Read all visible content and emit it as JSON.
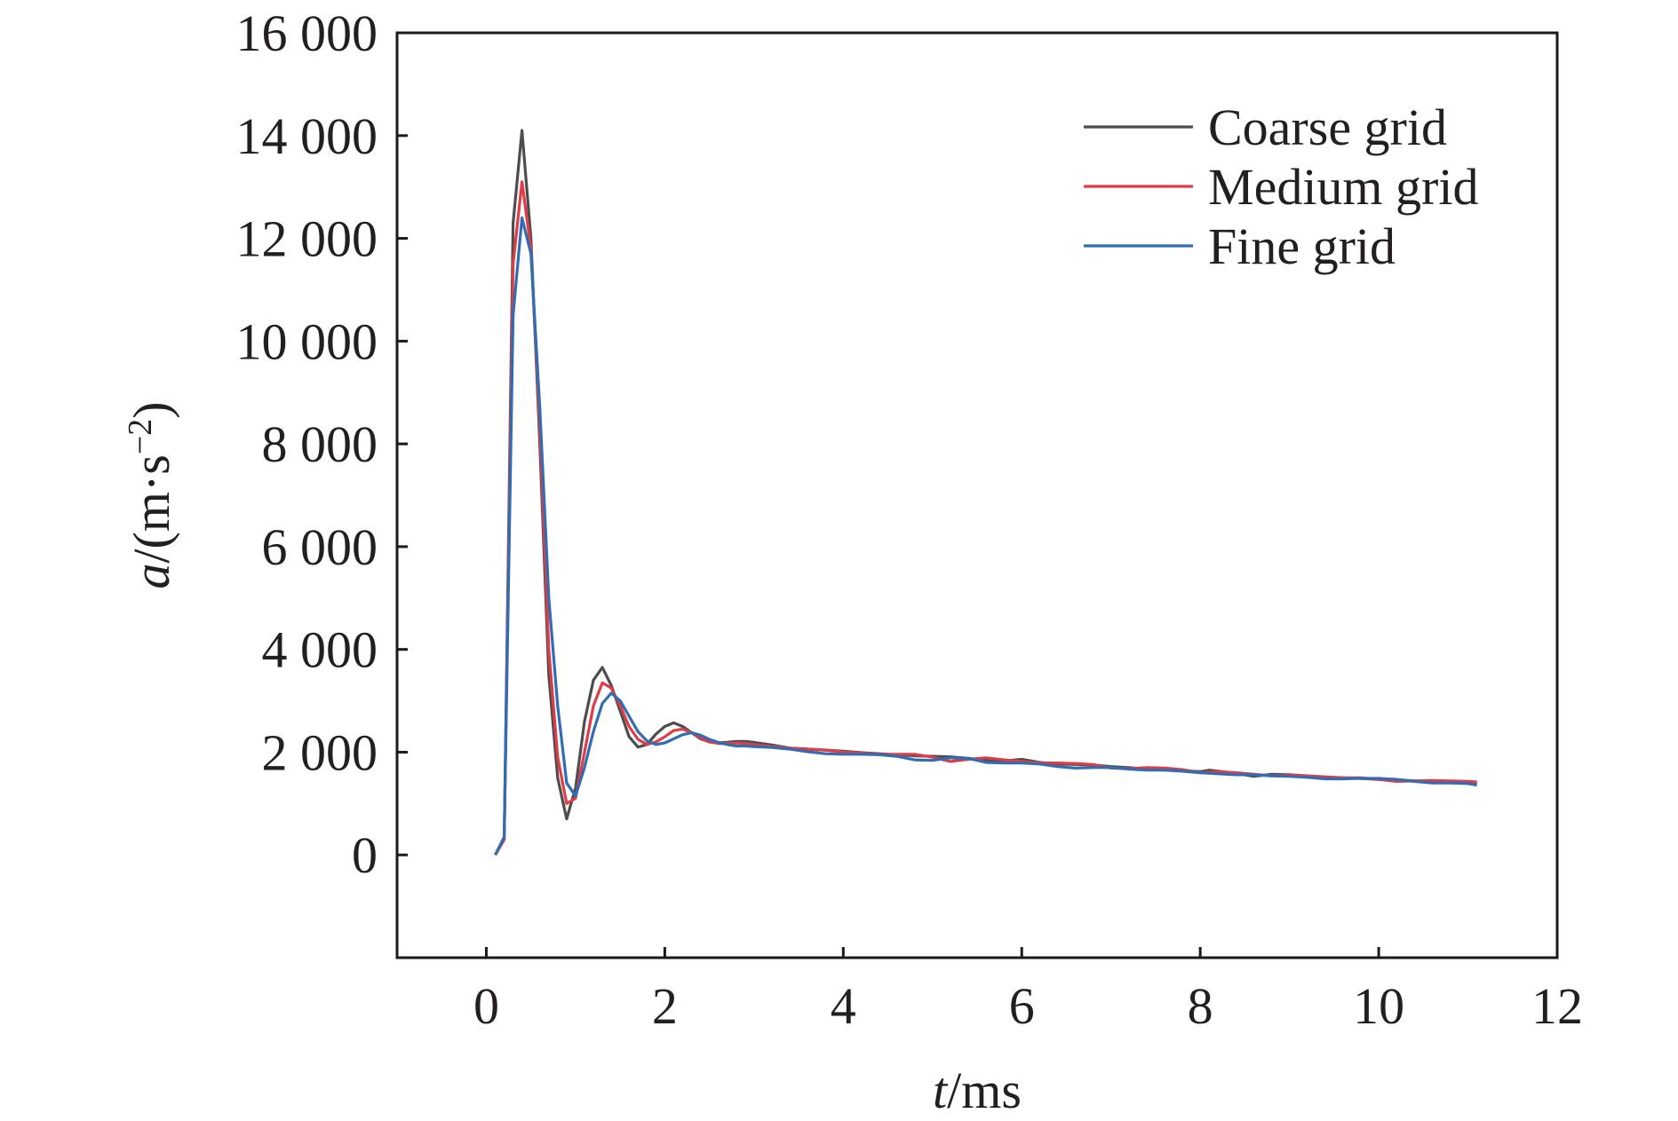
{
  "chart_data": {
    "type": "line",
    "title": "",
    "xlabel": {
      "var": "t",
      "unit": "/ms"
    },
    "ylabel": {
      "var": "a",
      "unit": "/(m·s",
      "sup": "−2",
      "close": ")"
    },
    "xlim": [
      -1,
      12
    ],
    "ylim": [
      -2000,
      16000
    ],
    "xticks": [
      0,
      2,
      4,
      6,
      8,
      10,
      12
    ],
    "xtick_labels": [
      "0",
      "2",
      "4",
      "6",
      "8",
      "10",
      "12"
    ],
    "yticks": [
      0,
      2000,
      4000,
      6000,
      8000,
      10000,
      12000,
      14000,
      16000
    ],
    "ytick_labels": [
      "0",
      "2 000",
      "4 000",
      "6 000",
      "8 000",
      "10 000",
      "12 000",
      "14 000",
      "16 000"
    ],
    "grid": false,
    "legend_position": "top-right",
    "series": [
      {
        "name": "Coarse grid",
        "color": "#4d4d4d",
        "points": [
          [
            0.1,
            0
          ],
          [
            0.2,
            300
          ],
          [
            0.3,
            12300
          ],
          [
            0.4,
            14100
          ],
          [
            0.5,
            12000
          ],
          [
            0.6,
            8000
          ],
          [
            0.7,
            3500
          ],
          [
            0.8,
            1500
          ],
          [
            0.9,
            700
          ],
          [
            1.0,
            1300
          ],
          [
            1.1,
            2600
          ],
          [
            1.2,
            3400
          ],
          [
            1.3,
            3650
          ],
          [
            1.4,
            3300
          ],
          [
            1.5,
            2800
          ],
          [
            1.6,
            2300
          ],
          [
            1.7,
            2100
          ],
          [
            1.8,
            2150
          ],
          [
            1.9,
            2350
          ],
          [
            2.0,
            2500
          ],
          [
            2.1,
            2570
          ],
          [
            2.2,
            2500
          ],
          [
            2.3,
            2380
          ],
          [
            2.4,
            2260
          ],
          [
            2.5,
            2200
          ],
          [
            2.6,
            2180
          ],
          [
            2.7,
            2190
          ],
          [
            2.8,
            2210
          ],
          [
            2.9,
            2210
          ],
          [
            3.0,
            2190
          ],
          [
            3.2,
            2140
          ],
          [
            3.4,
            2080
          ],
          [
            3.6,
            2060
          ],
          [
            3.8,
            2040
          ],
          [
            4.0,
            2020
          ],
          [
            4.2,
            1990
          ],
          [
            4.4,
            1970
          ],
          [
            4.6,
            1950
          ],
          [
            4.8,
            1930
          ],
          [
            5.0,
            1920
          ],
          [
            5.2,
            1910
          ],
          [
            5.4,
            1880
          ],
          [
            5.6,
            1840
          ],
          [
            5.8,
            1830
          ],
          [
            6.0,
            1860
          ],
          [
            6.2,
            1800
          ],
          [
            6.4,
            1770
          ],
          [
            6.6,
            1760
          ],
          [
            6.8,
            1750
          ],
          [
            7.0,
            1720
          ],
          [
            7.2,
            1700
          ],
          [
            7.4,
            1670
          ],
          [
            7.6,
            1650
          ],
          [
            7.8,
            1640
          ],
          [
            8.0,
            1620
          ],
          [
            8.1,
            1650
          ],
          [
            8.2,
            1630
          ],
          [
            8.4,
            1590
          ],
          [
            8.6,
            1530
          ],
          [
            8.8,
            1570
          ],
          [
            9.0,
            1560
          ],
          [
            9.2,
            1520
          ],
          [
            9.4,
            1500
          ],
          [
            9.6,
            1500
          ],
          [
            9.8,
            1490
          ],
          [
            10.0,
            1470
          ],
          [
            10.2,
            1460
          ],
          [
            10.4,
            1440
          ],
          [
            10.6,
            1430
          ],
          [
            10.8,
            1420
          ],
          [
            11.0,
            1400
          ],
          [
            11.1,
            1390
          ]
        ]
      },
      {
        "name": "Medium grid",
        "color": "#e03c46",
        "points": [
          [
            0.1,
            0
          ],
          [
            0.2,
            300
          ],
          [
            0.3,
            11500
          ],
          [
            0.4,
            13100
          ],
          [
            0.5,
            11800
          ],
          [
            0.6,
            8300
          ],
          [
            0.7,
            4000
          ],
          [
            0.8,
            1900
          ],
          [
            0.9,
            1000
          ],
          [
            1.0,
            1100
          ],
          [
            1.1,
            2000
          ],
          [
            1.2,
            2900
          ],
          [
            1.3,
            3350
          ],
          [
            1.4,
            3250
          ],
          [
            1.5,
            2900
          ],
          [
            1.6,
            2500
          ],
          [
            1.7,
            2250
          ],
          [
            1.8,
            2150
          ],
          [
            1.9,
            2200
          ],
          [
            2.0,
            2300
          ],
          [
            2.1,
            2420
          ],
          [
            2.2,
            2450
          ],
          [
            2.3,
            2380
          ],
          [
            2.4,
            2280
          ],
          [
            2.5,
            2200
          ],
          [
            2.6,
            2170
          ],
          [
            2.7,
            2170
          ],
          [
            2.8,
            2180
          ],
          [
            2.9,
            2170
          ],
          [
            3.0,
            2150
          ],
          [
            3.2,
            2110
          ],
          [
            3.4,
            2080
          ],
          [
            3.6,
            2060
          ],
          [
            3.8,
            2040
          ],
          [
            4.0,
            2000
          ],
          [
            4.2,
            1980
          ],
          [
            4.4,
            1960
          ],
          [
            4.6,
            1960
          ],
          [
            4.8,
            1960
          ],
          [
            5.0,
            1900
          ],
          [
            5.2,
            1820
          ],
          [
            5.4,
            1860
          ],
          [
            5.6,
            1890
          ],
          [
            5.8,
            1850
          ],
          [
            6.0,
            1820
          ],
          [
            6.2,
            1790
          ],
          [
            6.4,
            1790
          ],
          [
            6.6,
            1780
          ],
          [
            6.8,
            1760
          ],
          [
            7.0,
            1690
          ],
          [
            7.2,
            1680
          ],
          [
            7.4,
            1700
          ],
          [
            7.6,
            1690
          ],
          [
            7.8,
            1660
          ],
          [
            8.0,
            1600
          ],
          [
            8.2,
            1620
          ],
          [
            8.4,
            1600
          ],
          [
            8.6,
            1570
          ],
          [
            8.8,
            1540
          ],
          [
            9.0,
            1560
          ],
          [
            9.2,
            1540
          ],
          [
            9.4,
            1520
          ],
          [
            9.6,
            1500
          ],
          [
            9.8,
            1500
          ],
          [
            10.0,
            1470
          ],
          [
            10.2,
            1430
          ],
          [
            10.4,
            1440
          ],
          [
            10.6,
            1450
          ],
          [
            10.8,
            1440
          ],
          [
            11.0,
            1430
          ],
          [
            11.1,
            1420
          ]
        ]
      },
      {
        "name": "Fine grid",
        "color": "#2f6db5",
        "points": [
          [
            0.1,
            0
          ],
          [
            0.2,
            350
          ],
          [
            0.3,
            10500
          ],
          [
            0.4,
            12400
          ],
          [
            0.5,
            11700
          ],
          [
            0.6,
            8700
          ],
          [
            0.7,
            5000
          ],
          [
            0.8,
            2900
          ],
          [
            0.9,
            1400
          ],
          [
            1.0,
            1150
          ],
          [
            1.1,
            1700
          ],
          [
            1.2,
            2400
          ],
          [
            1.3,
            2950
          ],
          [
            1.4,
            3150
          ],
          [
            1.5,
            3000
          ],
          [
            1.6,
            2700
          ],
          [
            1.7,
            2400
          ],
          [
            1.8,
            2220
          ],
          [
            1.9,
            2150
          ],
          [
            2.0,
            2180
          ],
          [
            2.1,
            2260
          ],
          [
            2.2,
            2340
          ],
          [
            2.3,
            2380
          ],
          [
            2.4,
            2330
          ],
          [
            2.5,
            2250
          ],
          [
            2.6,
            2190
          ],
          [
            2.7,
            2150
          ],
          [
            2.8,
            2120
          ],
          [
            2.9,
            2120
          ],
          [
            3.0,
            2110
          ],
          [
            3.2,
            2090
          ],
          [
            3.4,
            2060
          ],
          [
            3.6,
            2010
          ],
          [
            3.8,
            1970
          ],
          [
            4.0,
            1960
          ],
          [
            4.2,
            1960
          ],
          [
            4.4,
            1950
          ],
          [
            4.6,
            1920
          ],
          [
            4.8,
            1850
          ],
          [
            5.0,
            1840
          ],
          [
            5.2,
            1890
          ],
          [
            5.4,
            1880
          ],
          [
            5.6,
            1800
          ],
          [
            5.8,
            1790
          ],
          [
            6.0,
            1790
          ],
          [
            6.2,
            1770
          ],
          [
            6.4,
            1720
          ],
          [
            6.6,
            1690
          ],
          [
            6.8,
            1700
          ],
          [
            7.0,
            1700
          ],
          [
            7.2,
            1670
          ],
          [
            7.4,
            1650
          ],
          [
            7.6,
            1650
          ],
          [
            7.8,
            1630
          ],
          [
            8.0,
            1600
          ],
          [
            8.2,
            1580
          ],
          [
            8.4,
            1560
          ],
          [
            8.6,
            1560
          ],
          [
            8.8,
            1540
          ],
          [
            9.0,
            1530
          ],
          [
            9.2,
            1510
          ],
          [
            9.4,
            1480
          ],
          [
            9.6,
            1480
          ],
          [
            9.8,
            1490
          ],
          [
            10.0,
            1490
          ],
          [
            10.2,
            1470
          ],
          [
            10.4,
            1430
          ],
          [
            10.6,
            1400
          ],
          [
            10.8,
            1400
          ],
          [
            11.0,
            1390
          ],
          [
            11.1,
            1360
          ]
        ]
      }
    ]
  }
}
